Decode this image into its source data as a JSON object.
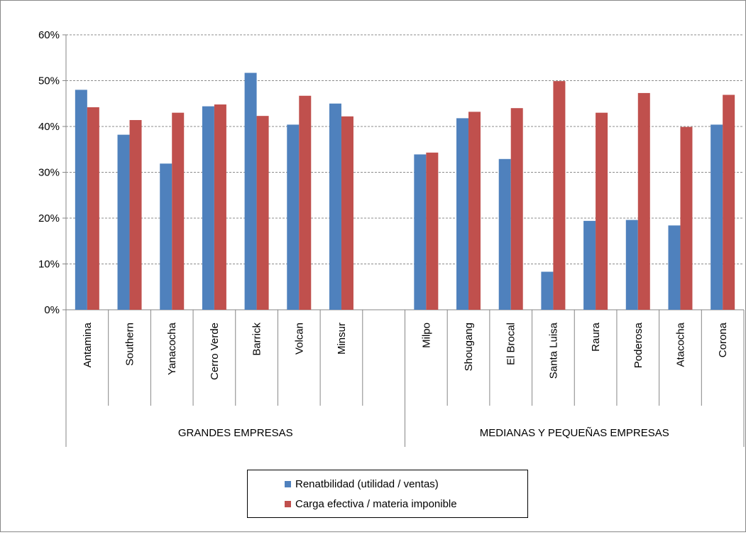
{
  "chart_data": {
    "type": "bar",
    "y_tick_labels": [
      "0%",
      "10%",
      "20%",
      "30%",
      "40%",
      "50%",
      "60%"
    ],
    "ylim": [
      0,
      60
    ],
    "grid": true,
    "legend_position": "bottom",
    "categories": [
      "Antamina",
      "Southern",
      "Yanacocha",
      "Cerro Verde",
      "Barrick",
      "Volcan",
      "Minsur",
      "",
      "Milpo",
      "Shougang",
      "El Brocal",
      "Santa Luisa",
      "Raura",
      "Poderosa",
      "Atacocha",
      "Corona"
    ],
    "groups": [
      {
        "label": "GRANDES EMPRESAS",
        "categories": [
          "Antamina",
          "Southern",
          "Yanacocha",
          "Cerro Verde",
          "Barrick",
          "Volcan",
          "Minsur",
          ""
        ]
      },
      {
        "label": "MEDIANAS Y PEQUEÑAS EMPRESAS",
        "categories": [
          "Milpo",
          "Shougang",
          "El Brocal",
          "Santa Luisa",
          "Raura",
          "Poderosa",
          "Atacocha",
          "Corona"
        ]
      }
    ],
    "series": [
      {
        "name": "Renatbilidad (utilidad / ventas)",
        "color": "#4F81BD",
        "values": [
          48,
          38.2,
          31.9,
          44.4,
          51.7,
          40.4,
          45,
          null,
          33.9,
          41.8,
          32.9,
          8.3,
          19.4,
          19.6,
          18.4,
          40.4
        ]
      },
      {
        "name": "Carga efectiva / materia imponible",
        "color": "#C0504D",
        "values": [
          44.2,
          41.4,
          43,
          44.8,
          42.3,
          46.7,
          42.2,
          null,
          34.3,
          43.2,
          44,
          49.9,
          43,
          47.3,
          39.9,
          46.9
        ]
      }
    ]
  }
}
